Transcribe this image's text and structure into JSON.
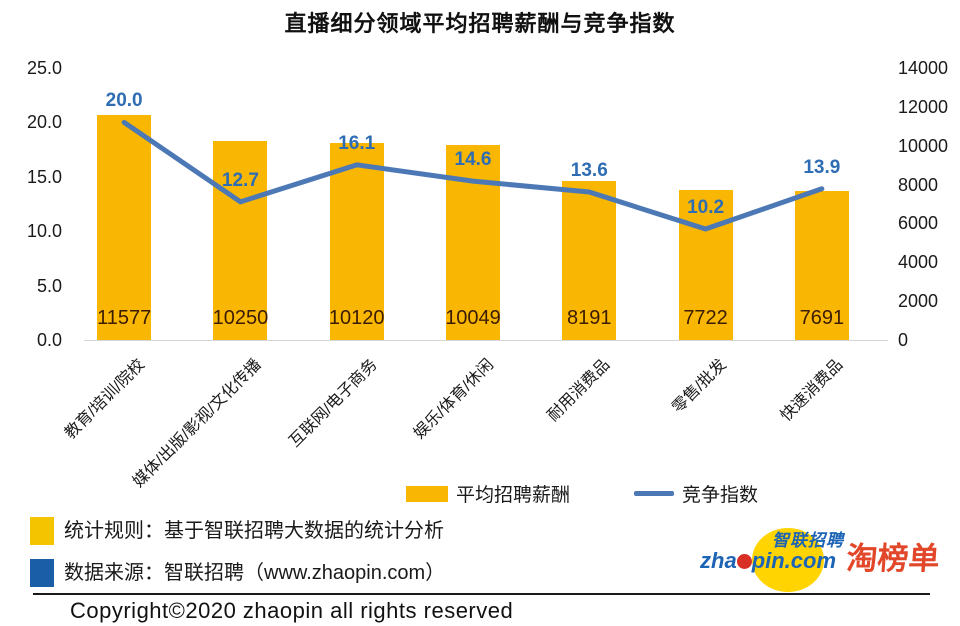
{
  "title": "直播细分领域平均招聘薪酬与竞争指数",
  "chart_data": {
    "type": "combo-bar-line",
    "categories": [
      "教育/培训/院校",
      "媒体/出版/影视/文化传播",
      "互联网/电子商务",
      "娱乐/体育/休闲",
      "耐用消费品",
      "零售/批发",
      "快速消费品"
    ],
    "series": [
      {
        "name": "平均招聘薪酬",
        "type": "bar",
        "axis": "right",
        "values": [
          11577,
          10250,
          10120,
          10049,
          8191,
          7722,
          7691
        ],
        "color": "#F9B602"
      },
      {
        "name": "竞争指数",
        "type": "line",
        "axis": "left",
        "values": [
          20.0,
          12.7,
          16.1,
          14.6,
          13.6,
          10.2,
          13.9
        ],
        "labels": [
          "20.0",
          "12.7",
          "16.1",
          "14.6",
          "13.6",
          "10.2",
          "13.9"
        ],
        "color": "#4C79B5",
        "label_color": "#2E6DB4"
      }
    ],
    "left_axis": {
      "min": 0,
      "max": 25,
      "tick_labels": [
        "25.0",
        "20.0",
        "15.0",
        "10.0",
        "5.0",
        "0.0"
      ]
    },
    "right_axis": {
      "min": 0,
      "max": 14000,
      "tick_labels": [
        "14000",
        "12000",
        "10000",
        "8000",
        "6000",
        "4000",
        "2000",
        "0"
      ]
    },
    "grid": false,
    "legend_position": "bottom"
  },
  "legend": {
    "bar": "平均招聘薪酬",
    "line": "竞争指数"
  },
  "notes": {
    "rule": "统计规则：基于智联招聘大数据的统计分析",
    "source": "数据来源：智联招聘（www.zhaopin.com）"
  },
  "branding": {
    "zhaopin_cn": "智联招聘",
    "zhaopin_en_left": "zha",
    "zhaopin_en_right": "pin.com",
    "red_logo": "淘榜单"
  },
  "copyright": "Copyright©2020 zhaopin all rights reserved",
  "colors": {
    "bar": "#F9B602",
    "line": "#4C79B5",
    "line_label": "#2E6DB4",
    "bar_value_text": "#3B1D03",
    "note_square_yellow": "#F5C400",
    "note_square_blue": "#1A5EA8",
    "logo_red": "#E2472A",
    "logo_blue": "#1D64B5",
    "logo_yellow": "#FFD400",
    "logo_ball_red": "#D93025"
  }
}
